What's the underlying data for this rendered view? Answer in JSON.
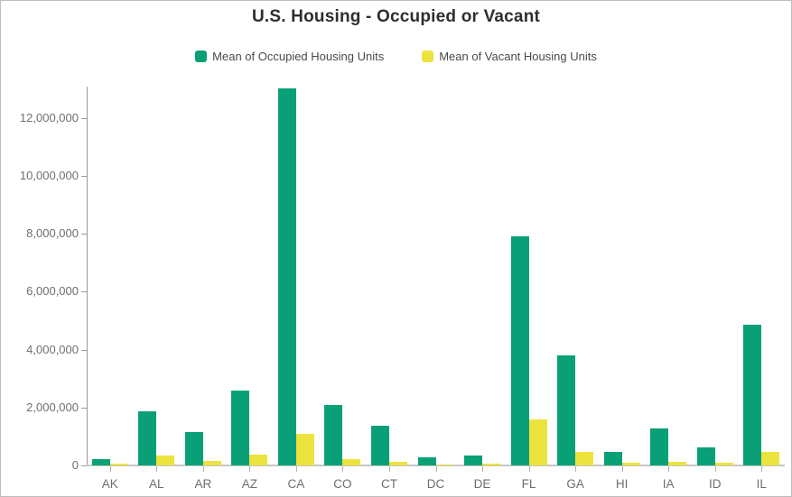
{
  "title": "U.S. Housing - Occupied or Vacant",
  "legend": {
    "items": [
      {
        "label": "Mean of Occupied Housing Units",
        "color": "#0aa077"
      },
      {
        "label": "Mean of Vacant Housing Units",
        "color": "#ece33e"
      }
    ]
  },
  "chart_data": {
    "type": "bar",
    "title": "U.S. Housing - Occupied or Vacant",
    "categories": [
      "AK",
      "AL",
      "AR",
      "AZ",
      "CA",
      "CO",
      "CT",
      "DC",
      "DE",
      "FL",
      "GA",
      "HI",
      "IA",
      "ID",
      "IL"
    ],
    "series": [
      {
        "name": "Mean of Occupied Housing Units",
        "color": "#0aa077",
        "values": [
          230000,
          1870000,
          1150000,
          2600000,
          13020000,
          2100000,
          1360000,
          270000,
          350000,
          7900000,
          3800000,
          460000,
          1270000,
          630000,
          4850000
        ]
      },
      {
        "name": "Mean of Vacant Housing Units",
        "color": "#ece33e",
        "values": [
          55000,
          350000,
          170000,
          370000,
          1080000,
          210000,
          125000,
          25000,
          55000,
          1600000,
          480000,
          80000,
          130000,
          80000,
          475000
        ]
      }
    ],
    "xlabel": "",
    "ylabel": "",
    "ylim": [
      0,
      13100000
    ],
    "yticks": [
      0,
      2000000,
      4000000,
      6000000,
      8000000,
      10000000,
      12000000
    ],
    "ytick_labels": [
      "0",
      "2,000,000",
      "4,000,000",
      "6,000,000",
      "8,000,000",
      "10,000,000",
      "12,000,000"
    ],
    "grid": false,
    "legend_position": "top"
  }
}
